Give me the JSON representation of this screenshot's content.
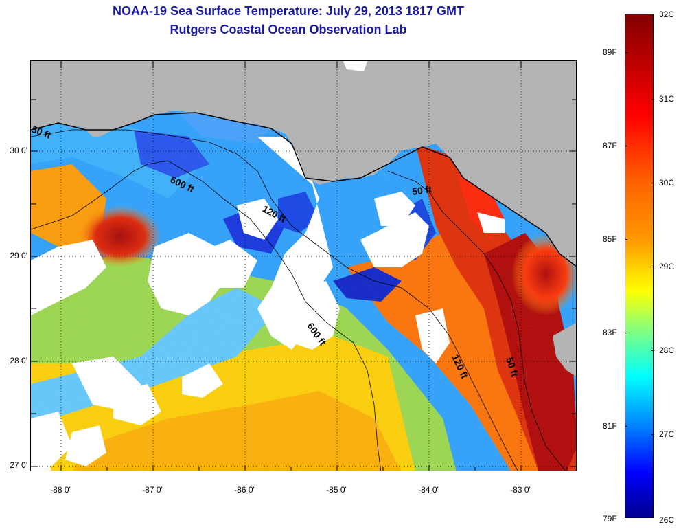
{
  "title": {
    "line1": "NOAA-19 Sea Surface Temperature:  July 29, 2013 1817 GMT",
    "line2": "Rutgers Coastal Ocean Observation Lab"
  },
  "map": {
    "lat_labels": [
      {
        "label": "30 0'",
        "lat": 30
      },
      {
        "label": "29 0'",
        "lat": 29
      },
      {
        "label": "28 0'",
        "lat": 28
      },
      {
        "label": "27 0'",
        "lat": 27
      }
    ],
    "lon_labels": [
      {
        "label": "-88 0'",
        "lon": -88
      },
      {
        "label": "-87 0'",
        "lon": -87
      },
      {
        "label": "-86 0'",
        "lon": -86
      },
      {
        "label": "-85 0'",
        "lon": -85
      },
      {
        "label": "-84 0'",
        "lon": -84
      },
      {
        "label": "-83 0'",
        "lon": -83
      }
    ],
    "contour_labels": [
      {
        "text": "50 ft",
        "id": "contour-50ft-west"
      },
      {
        "text": "600 ft",
        "id": "contour-600ft-north"
      },
      {
        "text": "120 ft",
        "id": "contour-120ft-north"
      },
      {
        "text": "50 ft",
        "id": "contour-50ft-bigbend"
      },
      {
        "text": "600 ft",
        "id": "contour-600ft-south"
      },
      {
        "text": "120 ft",
        "id": "contour-120ft-south"
      },
      {
        "text": "50 ft",
        "id": "contour-50ft-south"
      }
    ],
    "colors": {
      "land": "#b3b3b3",
      "cloud": "#ffffff"
    }
  },
  "colorbar": {
    "celsius": [
      {
        "label": "32C",
        "value": 32
      },
      {
        "label": "31C",
        "value": 31
      },
      {
        "label": "30C",
        "value": 30
      },
      {
        "label": "29C",
        "value": 29
      },
      {
        "label": "28C",
        "value": 28
      },
      {
        "label": "27C",
        "value": 27
      },
      {
        "label": "26C",
        "value": 26
      }
    ],
    "fahrenheit": [
      {
        "label": "89F",
        "value": 89
      },
      {
        "label": "87F",
        "value": 87
      },
      {
        "label": "85F",
        "value": 85
      },
      {
        "label": "83F",
        "value": 83
      },
      {
        "label": "81F",
        "value": 81
      },
      {
        "label": "79F",
        "value": 79
      }
    ]
  }
}
